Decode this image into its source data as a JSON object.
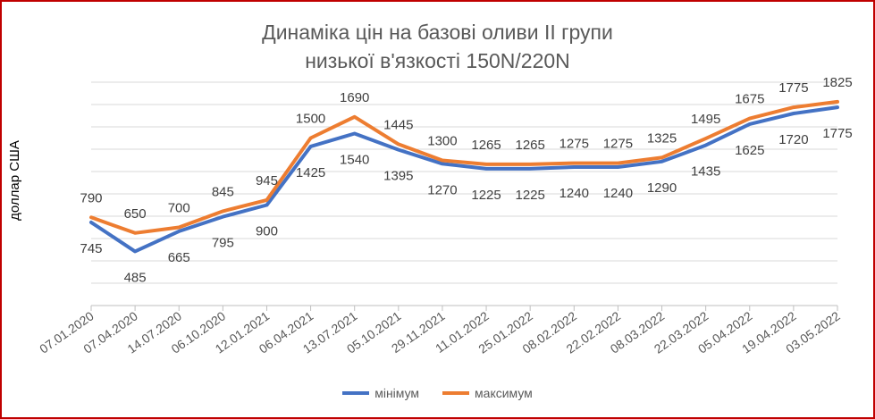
{
  "chart_data": {
    "type": "line",
    "title_lines": [
      "Динаміка цін на базові оливи ІІ групи",
      "низької в'язкості 150N/220N"
    ],
    "xlabel": "",
    "ylabel": "доллар США",
    "categories": [
      "07.01.2020",
      "07.04.2020",
      "14.07.2020",
      "06.10.2020",
      "12.01.2021",
      "06.04.2021",
      "13.07.2021",
      "05.10.2021",
      "29.11.2021",
      "11.01.2022",
      "25.01.2022",
      "08.02.2022",
      "22.02.2022",
      "08.03.2022",
      "22.03.2022",
      "05.04.2022",
      "19.04.2022",
      "03.05.2022"
    ],
    "ylim": [
      0,
      2000
    ],
    "grid": true,
    "legend_position": "bottom",
    "series": [
      {
        "name": "мінімум",
        "color": "#4472c4",
        "values": [
          745,
          485,
          665,
          795,
          900,
          1425,
          1540,
          1395,
          1270,
          1225,
          1225,
          1240,
          1240,
          1290,
          1435,
          1625,
          1720,
          1775
        ]
      },
      {
        "name": "максимум",
        "color": "#ed7d31",
        "values": [
          790,
          650,
          700,
          845,
          945,
          1500,
          1690,
          1445,
          1300,
          1265,
          1265,
          1275,
          1275,
          1325,
          1495,
          1675,
          1775,
          1825
        ]
      }
    ]
  }
}
